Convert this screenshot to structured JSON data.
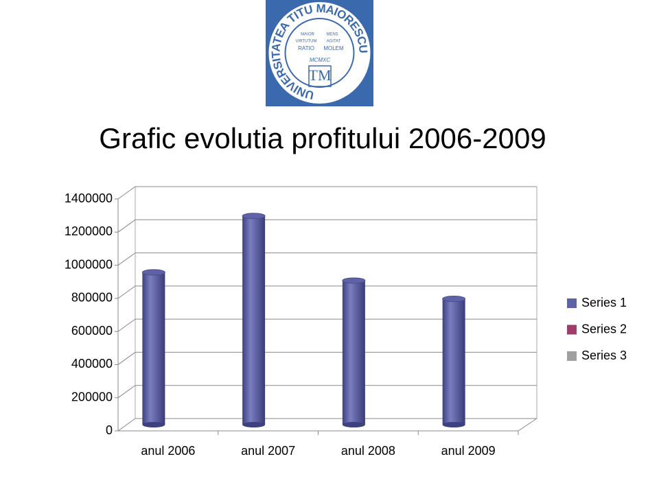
{
  "logo": {
    "name": "UNIVERSITATEA TITU MAIORESCU",
    "initials": "TM",
    "year": "MCMXC",
    "motto": [
      "MAIOR",
      "VIRTUTUM",
      "RATIO",
      "MENS",
      "AGITAT",
      "MOLEM"
    ]
  },
  "chart_data": {
    "type": "bar3d",
    "title": "Grafic evolutia profitului 2006-2009",
    "categories": [
      "anul 2006",
      "anul 2007",
      "anul 2008",
      "anul 2009"
    ],
    "series": [
      {
        "name": "Series 1",
        "color": "#5e62a6",
        "values": [
          920000,
          1260000,
          870000,
          760000
        ]
      },
      {
        "name": "Series 2",
        "color": "#9e3d6c",
        "values": [
          null,
          null,
          null,
          null
        ]
      },
      {
        "name": "Series 3",
        "color": "#a0a0a0",
        "values": [
          null,
          null,
          null,
          null
        ]
      }
    ],
    "ylim": [
      0,
      1400000
    ],
    "yticks": [
      0,
      200000,
      400000,
      600000,
      800000,
      1000000,
      1200000,
      1400000
    ],
    "grid": true,
    "legend": "right"
  }
}
